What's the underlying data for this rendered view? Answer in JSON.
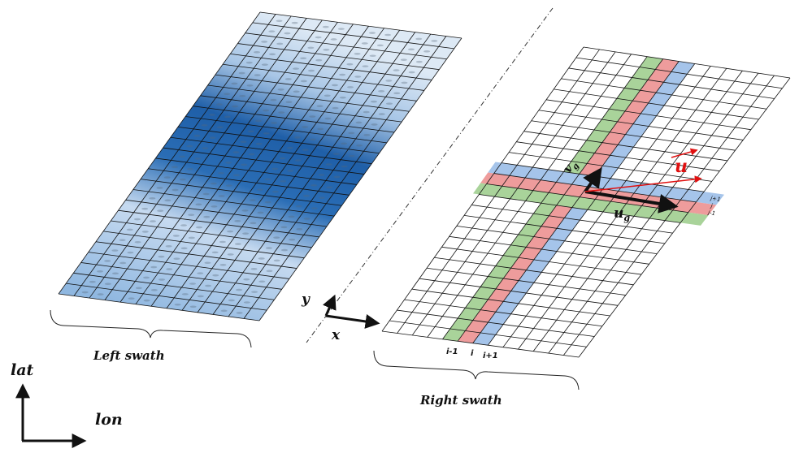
{
  "labels": {
    "left_swath": "Left swath",
    "right_swath": "Right swath",
    "lat": "lat",
    "lon": "lon",
    "x": "x",
    "y": "y",
    "u_vector": "u",
    "ug": "u",
    "ug_sub": "g",
    "vg": "v",
    "vg_sub": "g",
    "col_prev": "i-1",
    "col_cur": "i",
    "col_next": "i+1",
    "row_next": "j+1",
    "row_cur": "j",
    "row_prev": "j-1"
  },
  "colors": {
    "column_prev": "#a9d39a",
    "column_cur": "#ee9c9c",
    "column_next": "#a5c4ea",
    "vector_u": "#e01010",
    "grid_line": "#111111",
    "swath_dark": "#1f5fa8",
    "swath_light": "#dde9f5"
  },
  "grid": {
    "columns": 13,
    "rows": 27
  }
}
